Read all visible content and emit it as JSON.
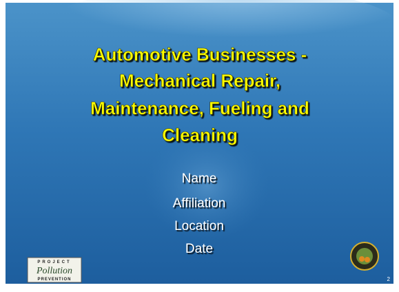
{
  "slide": {
    "title_lines": [
      "Automotive Businesses -",
      "Mechanical Repair,",
      "Maintenance, Fueling and",
      "Cleaning"
    ],
    "subtitle_lines": [
      "Name",
      "Affiliation",
      "Location",
      "Date"
    ],
    "logo_lines": [
      "PROJECT",
      "Pollution",
      "PREVENTION"
    ],
    "page_number": "2"
  }
}
